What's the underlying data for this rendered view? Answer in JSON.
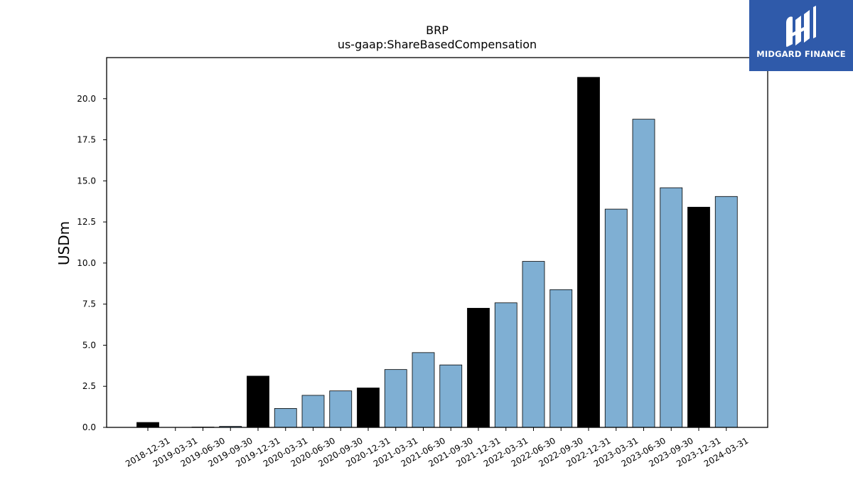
{
  "logo": {
    "text": "MIDGARD FINANCE"
  },
  "colors": {
    "annual": "#000000",
    "quarterly": "#7fafd3",
    "edge": "#000000",
    "logo_bg": "#2f5aaa"
  },
  "chart_data": {
    "type": "bar",
    "title": "BRP",
    "subtitle": "us-gaap:ShareBasedCompensation",
    "xlabel": "",
    "ylabel": "USDm",
    "ylim": [
      0,
      22.5
    ],
    "yticks": [
      "0.0",
      "2.5",
      "5.0",
      "7.5",
      "10.0",
      "12.5",
      "15.0",
      "17.5",
      "20.0"
    ],
    "grid": false,
    "categories": [
      "2018-12-31",
      "2019-03-31",
      "2019-06-30",
      "2019-09-30",
      "2019-12-31",
      "2020-03-31",
      "2020-06-30",
      "2020-09-30",
      "2020-12-31",
      "2021-03-31",
      "2021-06-30",
      "2021-09-30",
      "2021-12-31",
      "2022-03-31",
      "2022-06-30",
      "2022-09-30",
      "2022-12-31",
      "2023-03-31",
      "2023-06-30",
      "2023-09-30",
      "2023-12-31",
      "2024-03-31"
    ],
    "values": [
      0.3,
      0.0,
      0.02,
      0.06,
      3.12,
      1.15,
      1.95,
      2.22,
      2.4,
      3.52,
      4.55,
      3.8,
      7.25,
      7.58,
      10.1,
      8.38,
      21.3,
      13.28,
      18.75,
      14.58,
      13.4,
      14.05
    ],
    "annual": [
      true,
      false,
      false,
      false,
      true,
      false,
      false,
      false,
      true,
      false,
      false,
      false,
      true,
      false,
      false,
      false,
      true,
      false,
      false,
      false,
      true,
      false
    ]
  }
}
